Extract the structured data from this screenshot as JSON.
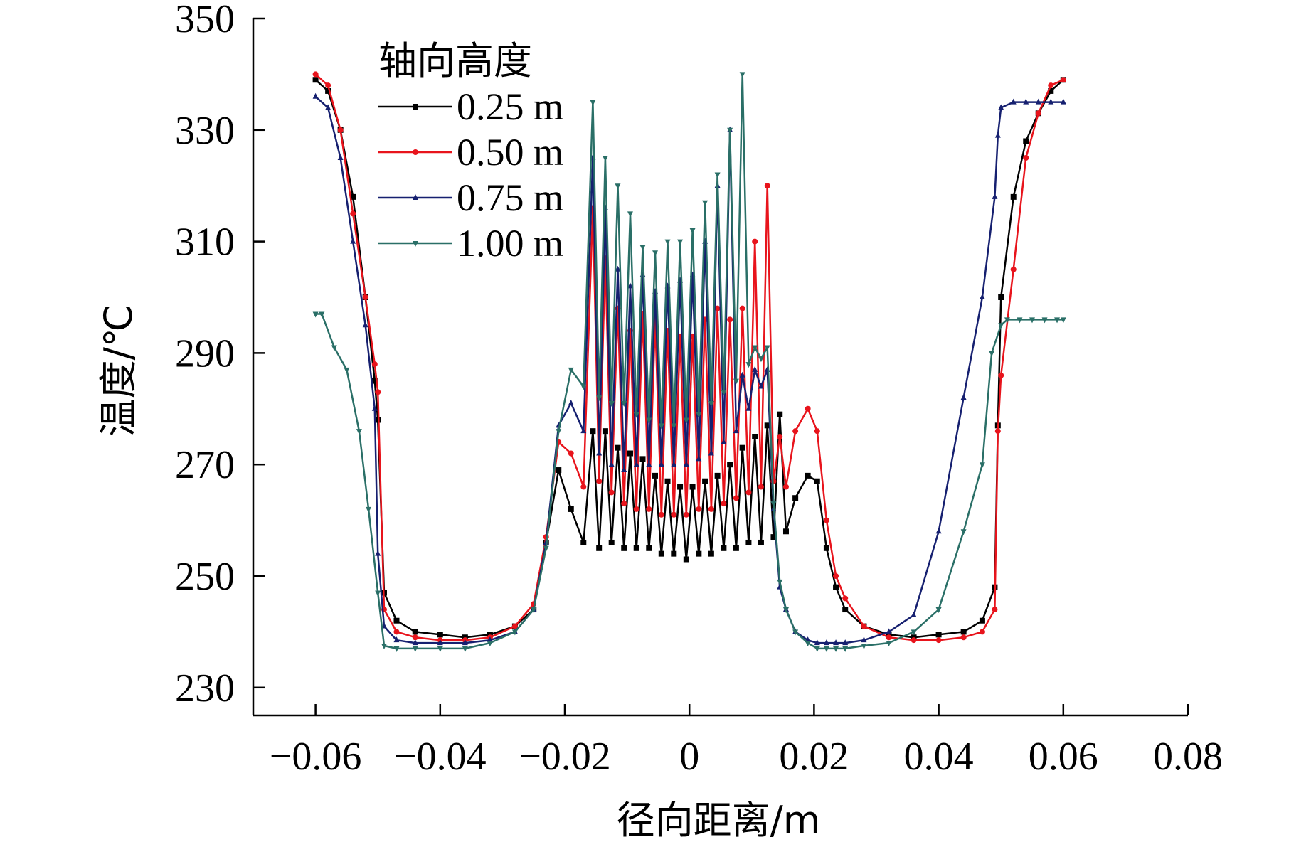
{
  "chart_data": {
    "type": "line",
    "title": "",
    "xlabel": "径向距离/m",
    "ylabel": "温度/℃",
    "xlim": [
      -0.07,
      0.08
    ],
    "ylim": [
      225,
      350
    ],
    "xticks": [
      -0.06,
      -0.04,
      -0.02,
      0,
      0.02,
      0.04,
      0.06,
      0.08
    ],
    "xtick_labels": [
      "−0.06",
      "−0.04",
      "−0.02",
      "0",
      "0.02",
      "0.04",
      "0.06",
      "0.08"
    ],
    "yticks": [
      230,
      250,
      270,
      290,
      310,
      330,
      350
    ],
    "ytick_labels": [
      "230",
      "250",
      "270",
      "290",
      "310",
      "330",
      "350"
    ],
    "legend": {
      "title": "轴向高度",
      "position": "top-left"
    },
    "series": [
      {
        "name": "0.25 m",
        "color": "#000000",
        "marker": "square",
        "x": [
          -0.06,
          -0.058,
          -0.056,
          -0.054,
          -0.052,
          -0.0505,
          -0.05,
          -0.049,
          -0.047,
          -0.044,
          -0.04,
          -0.036,
          -0.032,
          -0.028,
          -0.025,
          -0.023,
          -0.021,
          -0.019,
          -0.017,
          -0.0155,
          -0.0145,
          -0.0135,
          -0.0125,
          -0.0115,
          -0.0105,
          -0.0095,
          -0.0085,
          -0.0075,
          -0.0065,
          -0.0055,
          -0.0045,
          -0.0035,
          -0.0025,
          -0.0015,
          -0.0005,
          0.0005,
          0.0015,
          0.0025,
          0.0035,
          0.0045,
          0.0055,
          0.0065,
          0.0075,
          0.0085,
          0.0095,
          0.0105,
          0.0115,
          0.0125,
          0.0135,
          0.0145,
          0.0155,
          0.017,
          0.019,
          0.0205,
          0.022,
          0.0235,
          0.025,
          0.028,
          0.032,
          0.036,
          0.04,
          0.044,
          0.047,
          0.049,
          0.0495,
          0.05,
          0.052,
          0.054,
          0.056,
          0.058,
          0.06
        ],
        "y": [
          339,
          337,
          330,
          318,
          300,
          285,
          278,
          247,
          242,
          240,
          239.5,
          239,
          239.5,
          241,
          244,
          256,
          269,
          262,
          256,
          276,
          255,
          276,
          256,
          273,
          255,
          272,
          255,
          271,
          255,
          268,
          254,
          267,
          254,
          266,
          253,
          266,
          254,
          267,
          254,
          268,
          255,
          270,
          255,
          273,
          256,
          275,
          256,
          277,
          257,
          279,
          258,
          264,
          268,
          267,
          255,
          248,
          244,
          241,
          239.5,
          239,
          239.5,
          240,
          242,
          248,
          277,
          300,
          318,
          328,
          333,
          337,
          339
        ]
      },
      {
        "name": "0.50 m",
        "color": "#e8141c",
        "marker": "circle",
        "x": [
          -0.06,
          -0.058,
          -0.056,
          -0.054,
          -0.052,
          -0.0505,
          -0.05,
          -0.049,
          -0.047,
          -0.044,
          -0.04,
          -0.036,
          -0.032,
          -0.028,
          -0.025,
          -0.023,
          -0.021,
          -0.019,
          -0.017,
          -0.0155,
          -0.0145,
          -0.0135,
          -0.0125,
          -0.0115,
          -0.0105,
          -0.0095,
          -0.0085,
          -0.0075,
          -0.0065,
          -0.0055,
          -0.0045,
          -0.0035,
          -0.0025,
          -0.0015,
          -0.0005,
          0.0005,
          0.0015,
          0.0025,
          0.0035,
          0.0045,
          0.0055,
          0.0065,
          0.0075,
          0.0085,
          0.0095,
          0.0105,
          0.0115,
          0.0125,
          0.0135,
          0.0145,
          0.0155,
          0.017,
          0.019,
          0.0205,
          0.022,
          0.0235,
          0.025,
          0.028,
          0.032,
          0.036,
          0.04,
          0.044,
          0.047,
          0.049,
          0.0495,
          0.05,
          0.052,
          0.054,
          0.056,
          0.058,
          0.06
        ],
        "y": [
          340,
          338,
          330,
          315,
          300,
          288,
          283,
          244,
          240,
          239,
          238.5,
          238.5,
          239,
          241,
          245,
          257,
          274,
          272,
          266,
          316,
          267,
          307,
          265,
          298,
          263,
          294,
          262,
          297,
          262,
          296,
          261,
          294,
          261,
          293,
          261,
          293,
          262,
          296,
          262,
          298,
          263,
          296,
          264,
          298,
          265,
          310,
          266,
          320,
          267,
          275,
          266,
          276,
          280,
          276,
          260,
          250,
          246,
          241,
          239,
          238.5,
          238.5,
          239,
          240,
          244,
          276,
          286,
          305,
          325,
          333,
          338,
          339
        ]
      },
      {
        "name": "0.75 m",
        "color": "#162070",
        "marker": "triangle-up",
        "x": [
          -0.06,
          -0.058,
          -0.056,
          -0.054,
          -0.052,
          -0.0505,
          -0.05,
          -0.049,
          -0.047,
          -0.044,
          -0.04,
          -0.036,
          -0.032,
          -0.028,
          -0.025,
          -0.023,
          -0.021,
          -0.019,
          -0.017,
          -0.0155,
          -0.0145,
          -0.0135,
          -0.0125,
          -0.0115,
          -0.0105,
          -0.0095,
          -0.0085,
          -0.0075,
          -0.0065,
          -0.0055,
          -0.0045,
          -0.0035,
          -0.0025,
          -0.0015,
          -0.0005,
          0.0005,
          0.0015,
          0.0025,
          0.0035,
          0.0045,
          0.0055,
          0.0065,
          0.0075,
          0.0085,
          0.0095,
          0.0105,
          0.0115,
          0.0125,
          0.0135,
          0.0145,
          0.0155,
          0.017,
          0.019,
          0.0205,
          0.022,
          0.0235,
          0.025,
          0.028,
          0.032,
          0.036,
          0.04,
          0.044,
          0.047,
          0.049,
          0.0495,
          0.05,
          0.052,
          0.054,
          0.056,
          0.058,
          0.06
        ],
        "y": [
          336,
          334,
          325,
          310,
          295,
          280,
          254,
          241,
          238.5,
          238,
          238,
          238,
          238.5,
          240,
          244,
          256,
          277,
          281,
          276,
          325,
          272,
          316,
          270,
          305,
          269,
          302,
          270,
          304,
          270,
          301,
          270,
          302,
          270,
          303,
          270,
          304,
          271,
          310,
          272,
          320,
          274,
          330,
          276,
          286,
          280,
          287,
          284,
          287,
          262,
          248,
          244,
          240,
          238.5,
          238,
          238,
          238,
          238,
          238.5,
          240,
          243,
          258,
          282,
          300,
          318,
          329,
          334,
          335,
          335,
          335,
          335,
          335
        ]
      },
      {
        "name": "1.00 m",
        "color": "#2a6f67",
        "marker": "triangle-down",
        "x": [
          -0.06,
          -0.059,
          -0.057,
          -0.055,
          -0.053,
          -0.0515,
          -0.05,
          -0.049,
          -0.047,
          -0.044,
          -0.04,
          -0.036,
          -0.032,
          -0.028,
          -0.025,
          -0.023,
          -0.021,
          -0.019,
          -0.017,
          -0.0155,
          -0.0145,
          -0.0135,
          -0.0125,
          -0.0115,
          -0.0105,
          -0.0095,
          -0.0085,
          -0.0075,
          -0.0065,
          -0.0055,
          -0.0045,
          -0.0035,
          -0.0025,
          -0.0015,
          -0.0005,
          0.0005,
          0.0015,
          0.0025,
          0.0035,
          0.0045,
          0.0055,
          0.0065,
          0.0075,
          0.0085,
          0.0095,
          0.0105,
          0.0115,
          0.0125,
          0.0135,
          0.0145,
          0.0155,
          0.017,
          0.019,
          0.0205,
          0.022,
          0.0235,
          0.025,
          0.028,
          0.032,
          0.036,
          0.04,
          0.044,
          0.047,
          0.0485,
          0.05,
          0.051,
          0.053,
          0.055,
          0.057,
          0.059,
          0.06
        ],
        "y": [
          297,
          297,
          291,
          287,
          276,
          262,
          247,
          237.5,
          237,
          237,
          237,
          237,
          238,
          240,
          244,
          255,
          276,
          287,
          284,
          335,
          282,
          325,
          281,
          320,
          281,
          315,
          279,
          309,
          278,
          308,
          277,
          310,
          277,
          310,
          278,
          312,
          279,
          317,
          281,
          322,
          283,
          330,
          285,
          340,
          288,
          291,
          289,
          291,
          263,
          249,
          244,
          240,
          238,
          237,
          237,
          237,
          237,
          237.5,
          238,
          240,
          244,
          258,
          270,
          290,
          295,
          296,
          296,
          296,
          296,
          296,
          296
        ]
      }
    ]
  }
}
